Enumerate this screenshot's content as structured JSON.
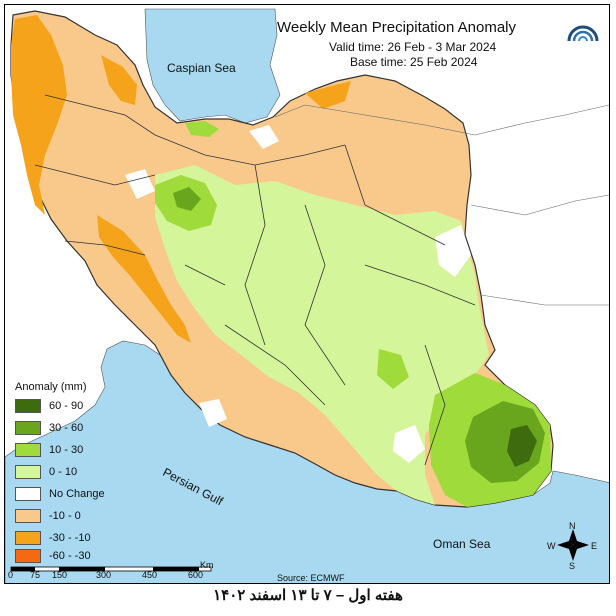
{
  "header": {
    "title": "Weekly Mean Precipitation Anomaly",
    "valid_time": "Valid time:  26 Feb - 3 Mar 2024",
    "base_time": "Base time: 25 Feb 2024"
  },
  "seas": {
    "caspian": "Caspian Sea",
    "persian_gulf": "Persian Gulf",
    "oman": "Oman Sea"
  },
  "legend": {
    "title": "Anomaly (mm)",
    "items": [
      {
        "label": "60 - 90",
        "color": "#3f6b0f"
      },
      {
        "label": "30 - 60",
        "color": "#6aa51e"
      },
      {
        "label": "10 - 30",
        "color": "#9fdb3a"
      },
      {
        "label": "0 - 10",
        "color": "#d5f59a"
      },
      {
        "label": "No Change",
        "color": "#ffffff"
      },
      {
        "label": "-10 - 0",
        "color": "#f8c98b"
      },
      {
        "label": "-30 - -10",
        "color": "#f5a31a"
      },
      {
        "label": "-60 - -30",
        "color": "#f46a12"
      }
    ]
  },
  "scale": {
    "ticks": [
      "0",
      "75",
      "150",
      "300",
      "450",
      "600"
    ],
    "unit": "Km"
  },
  "compass": {
    "n": "N",
    "s": "S",
    "e": "E",
    "w": "W"
  },
  "source": "Source: ECMWF",
  "footer": "هفته اول – ۷ تا ۱۳ اسفند ۱۴۰۲",
  "colors": {
    "water": "#a8d9f0",
    "border": "#333333"
  }
}
